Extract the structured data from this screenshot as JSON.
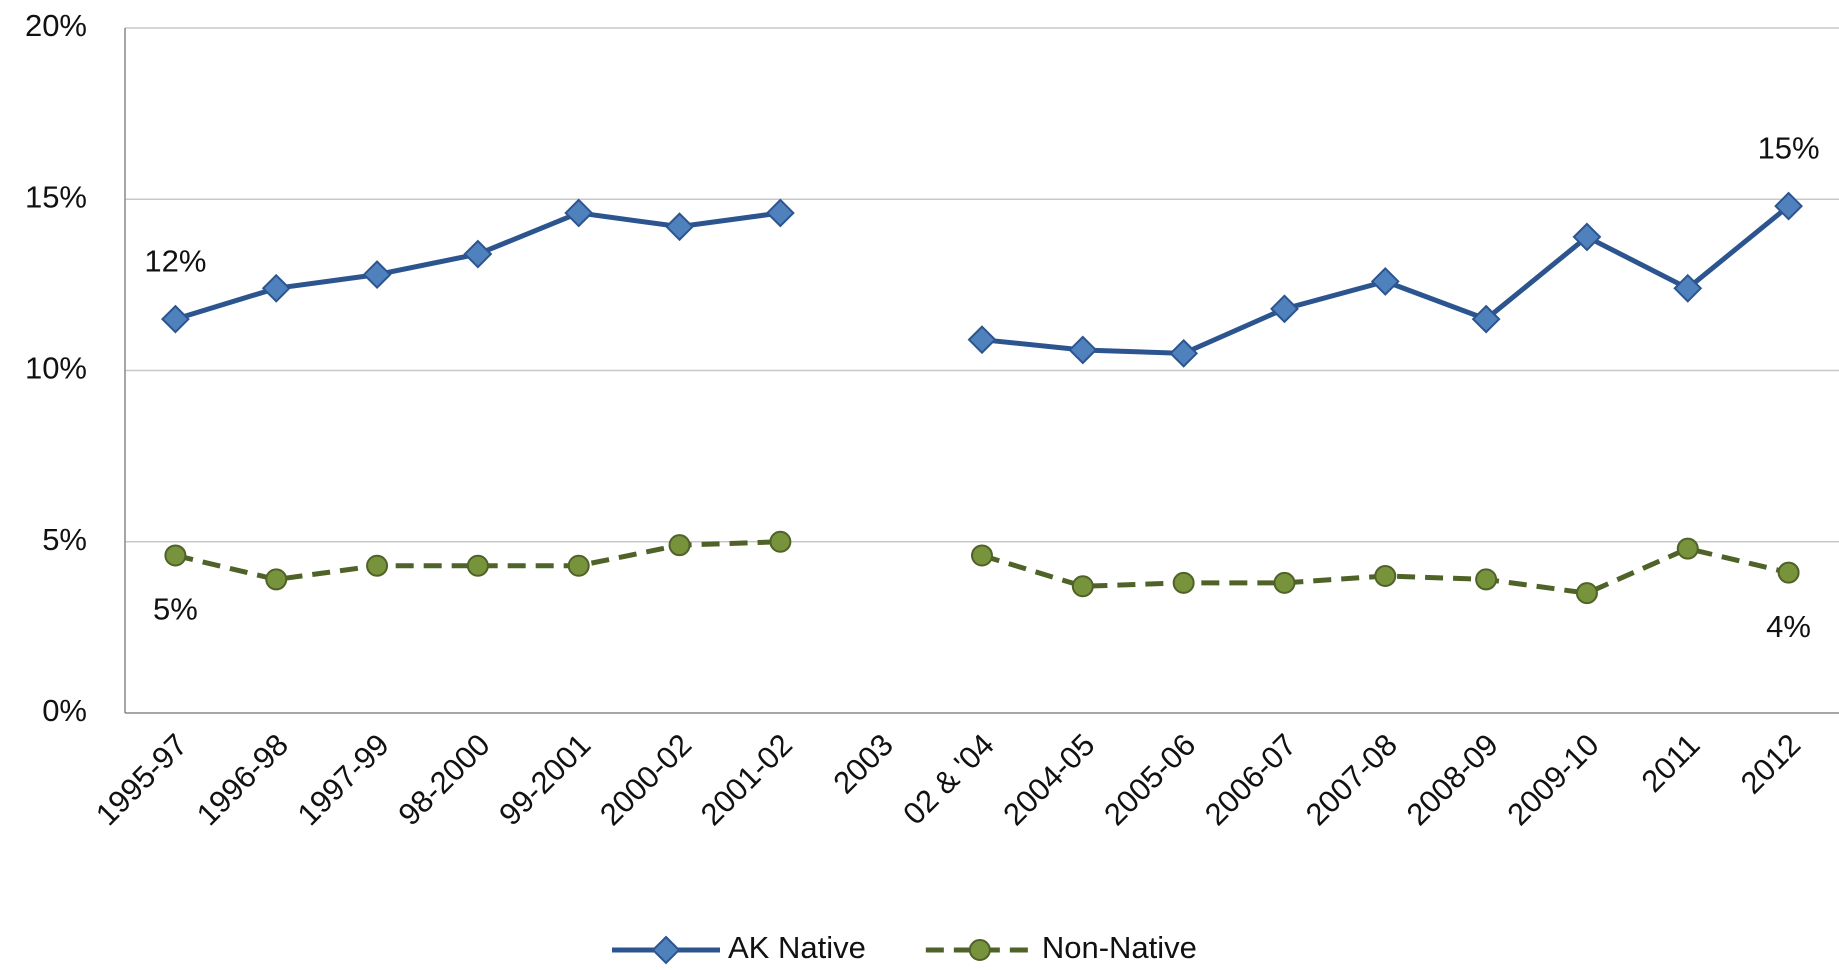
{
  "chart_data": {
    "type": "line",
    "categories": [
      "1995-97",
      "1996-98",
      "1997-99",
      "98-2000",
      "99-2001",
      "2000-02",
      "2001-02",
      "2003",
      "02 & '04",
      "2004-05",
      "2005-06",
      "2006-07",
      "2007-08",
      "2008-09",
      "2009-10",
      "2011",
      "2012"
    ],
    "series": [
      {
        "name": "AK Native",
        "color": "#2c5590",
        "marker": "diamond",
        "marker_color": "#4f81bd",
        "dash": false,
        "values": [
          11.5,
          12.4,
          12.8,
          13.4,
          14.6,
          14.2,
          14.6,
          null,
          10.9,
          10.6,
          10.5,
          11.8,
          12.6,
          11.5,
          13.9,
          12.4,
          14.8
        ],
        "value_labels": [
          "12%",
          null,
          null,
          null,
          null,
          null,
          null,
          null,
          null,
          null,
          null,
          null,
          null,
          null,
          null,
          null,
          "15%"
        ]
      },
      {
        "name": "Non-Native",
        "color": "#4f6228",
        "marker": "circle",
        "marker_color": "#77933c",
        "dash": true,
        "values": [
          4.6,
          3.9,
          4.3,
          4.3,
          4.3,
          4.9,
          5.0,
          null,
          4.6,
          3.7,
          3.8,
          3.8,
          4.0,
          3.9,
          3.5,
          4.8,
          4.1
        ],
        "value_labels": [
          "5%",
          null,
          null,
          null,
          null,
          null,
          null,
          null,
          null,
          null,
          null,
          null,
          null,
          null,
          null,
          null,
          "4%"
        ]
      }
    ],
    "ylim": [
      0,
      20
    ],
    "yticks": [
      {
        "value": 0,
        "label": "0%"
      },
      {
        "value": 5,
        "label": "5%"
      },
      {
        "value": 10,
        "label": "10%"
      },
      {
        "value": 15,
        "label": "15%"
      },
      {
        "value": 20,
        "label": "20%"
      }
    ],
    "grid": true,
    "legend": "bottom"
  }
}
